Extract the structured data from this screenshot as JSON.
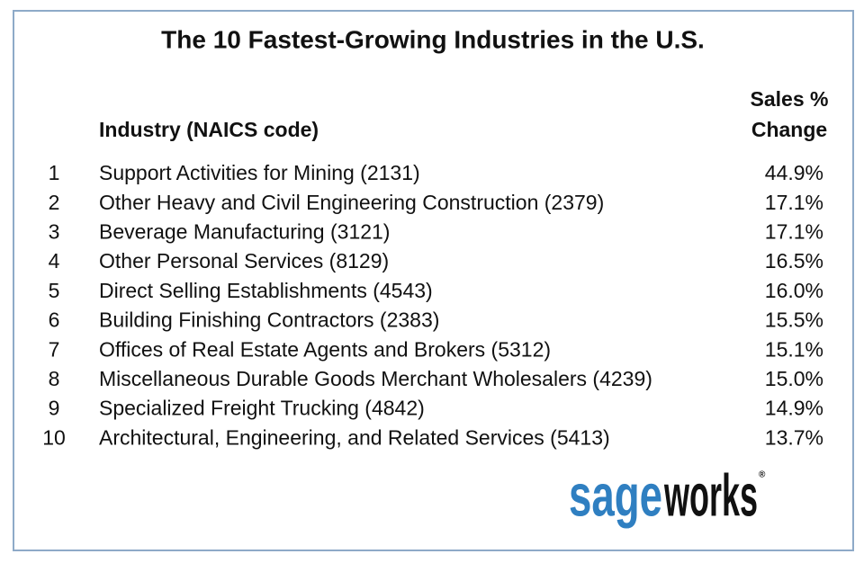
{
  "title": "The 10 Fastest-Growing Industries in the U.S.",
  "table": {
    "headers": {
      "industry": "Industry (NAICS code)",
      "change": [
        "Sales %",
        "Change"
      ]
    },
    "rows": [
      [
        "1",
        "Support Activities for Mining (2131)",
        "44.9%"
      ],
      [
        "2",
        "Other Heavy and Civil Engineering Construction (2379)",
        "17.1%"
      ],
      [
        "3",
        "Beverage Manufacturing (3121)",
        "17.1%"
      ],
      [
        "4",
        "Other Personal Services (8129)",
        "16.5%"
      ],
      [
        "5",
        "Direct Selling Establishments (4543)",
        "16.0%"
      ],
      [
        "6",
        "Building Finishing Contractors (2383)",
        "15.5%"
      ],
      [
        "7",
        "Offices of Real Estate Agents and Brokers (5312)",
        "15.1%"
      ],
      [
        "8",
        "Miscellaneous Durable Goods Merchant Wholesalers (4239)",
        "15.0%"
      ],
      [
        "9",
        "Specialized Freight Trucking (4842)",
        "14.9%"
      ],
      [
        "10",
        "Architectural, Engineering, and Related Services (5413)",
        "13.7%"
      ]
    ]
  },
  "logo": {
    "part1": "sage",
    "part2": "works",
    "mark": "®"
  }
}
